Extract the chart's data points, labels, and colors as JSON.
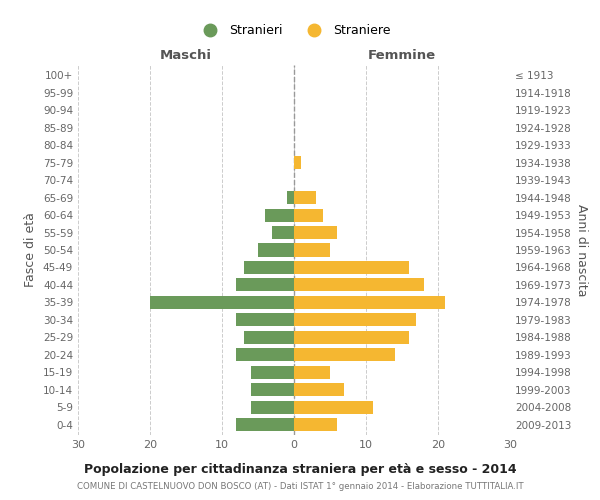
{
  "age_groups": [
    "100+",
    "95-99",
    "90-94",
    "85-89",
    "80-84",
    "75-79",
    "70-74",
    "65-69",
    "60-64",
    "55-59",
    "50-54",
    "45-49",
    "40-44",
    "35-39",
    "30-34",
    "25-29",
    "20-24",
    "15-19",
    "10-14",
    "5-9",
    "0-4"
  ],
  "birth_years": [
    "≤ 1913",
    "1914-1918",
    "1919-1923",
    "1924-1928",
    "1929-1933",
    "1934-1938",
    "1939-1943",
    "1944-1948",
    "1949-1953",
    "1954-1958",
    "1959-1963",
    "1964-1968",
    "1969-1973",
    "1974-1978",
    "1979-1983",
    "1984-1988",
    "1989-1993",
    "1994-1998",
    "1999-2003",
    "2004-2008",
    "2009-2013"
  ],
  "maschi": [
    0,
    0,
    0,
    0,
    0,
    0,
    0,
    1,
    4,
    3,
    5,
    7,
    8,
    20,
    8,
    7,
    8,
    6,
    6,
    6,
    8
  ],
  "femmine": [
    0,
    0,
    0,
    0,
    0,
    1,
    0,
    3,
    4,
    6,
    5,
    16,
    18,
    21,
    17,
    16,
    14,
    5,
    7,
    11,
    6
  ],
  "color_maschi": "#6a9a5a",
  "color_femmine": "#f5b731",
  "title": "Popolazione per cittadinanza straniera per età e sesso - 2014",
  "subtitle": "COMUNE DI CASTELNUOVO DON BOSCO (AT) - Dati ISTAT 1° gennaio 2014 - Elaborazione TUTTITALIA.IT",
  "legend_maschi": "Stranieri",
  "legend_femmine": "Straniere",
  "xlabel_left": "Maschi",
  "xlabel_right": "Femmine",
  "ylabel_left": "Fasce di età",
  "ylabel_right": "Anni di nascita",
  "xlim": 30,
  "background_color": "#ffffff",
  "grid_color": "#cccccc"
}
